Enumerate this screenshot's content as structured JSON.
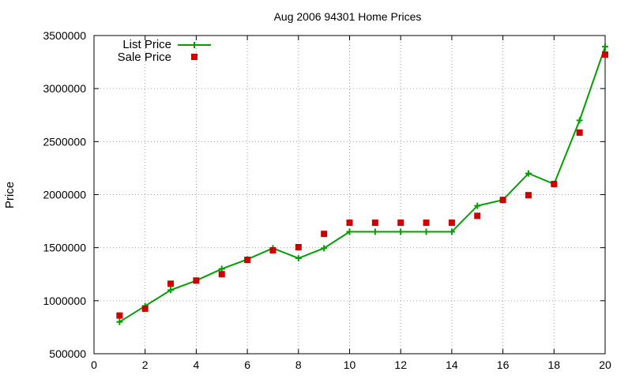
{
  "chart_data": {
    "type": "line",
    "title": "Aug 2006 94301 Home Prices",
    "xlabel": "",
    "ylabel": "Price",
    "xlim": [
      0,
      20
    ],
    "ylim": [
      500000,
      3500000
    ],
    "xticks": [
      0,
      2,
      4,
      6,
      8,
      10,
      12,
      14,
      16,
      18,
      20
    ],
    "yticks": [
      500000,
      1000000,
      1500000,
      2000000,
      2500000,
      3000000,
      3500000
    ],
    "grid": true,
    "legend_position": "top-left",
    "series": [
      {
        "name": "List Price",
        "type": "line",
        "marker": "plus",
        "color": "#00a000",
        "x": [
          1,
          2,
          3,
          4,
          5,
          6,
          7,
          8,
          9,
          10,
          11,
          12,
          13,
          14,
          15,
          16,
          17,
          18,
          19,
          20
        ],
        "y": [
          800000,
          950000,
          1100000,
          1190000,
          1300000,
          1390000,
          1495000,
          1400000,
          1495000,
          1650000,
          1650000,
          1650000,
          1650000,
          1650000,
          1895000,
          1950000,
          2200000,
          2100000,
          2700000,
          3395000
        ]
      },
      {
        "name": "Sale Price",
        "type": "scatter",
        "marker": "square",
        "color": "#cc0000",
        "x": [
          1,
          2,
          3,
          4,
          5,
          6,
          7,
          8,
          9,
          10,
          11,
          12,
          13,
          14,
          15,
          16,
          17,
          18,
          19,
          20
        ],
        "y": [
          860000,
          925000,
          1160000,
          1190000,
          1250000,
          1385000,
          1475000,
          1505000,
          1630000,
          1735000,
          1735000,
          1735000,
          1735000,
          1735000,
          1800000,
          1950000,
          1995000,
          2100000,
          2585000,
          3320000
        ]
      }
    ]
  }
}
